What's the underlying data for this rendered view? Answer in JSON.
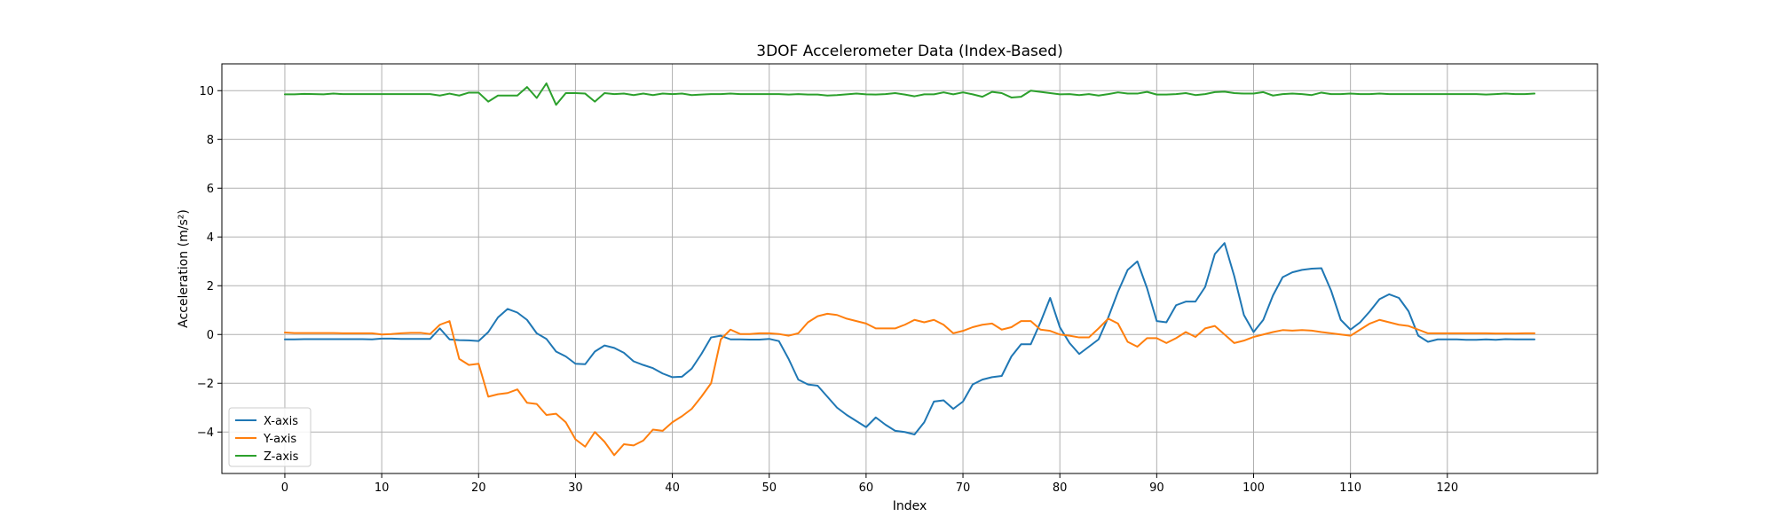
{
  "chart_data": {
    "type": "line",
    "title": "3DOF Accelerometer Data (Index-Based)",
    "xlabel": "Index",
    "ylabel": "Acceleration (m/s²)",
    "xlim": [
      -6.5,
      135.5
    ],
    "ylim": [
      -5.7,
      11.1
    ],
    "xticks": [
      0,
      10,
      20,
      30,
      40,
      50,
      60,
      70,
      80,
      90,
      100,
      110,
      120
    ],
    "yticks": [
      -4,
      -2,
      0,
      2,
      4,
      6,
      8,
      10
    ],
    "grid": true,
    "legend_position": "lower-left",
    "series": [
      {
        "name": "X-axis",
        "color": "#1f77b4",
        "values": [
          -0.2,
          -0.2,
          -0.19,
          -0.19,
          -0.19,
          -0.19,
          -0.19,
          -0.19,
          -0.19,
          -0.2,
          -0.17,
          -0.17,
          -0.18,
          -0.18,
          -0.18,
          -0.18,
          0.25,
          -0.2,
          -0.23,
          -0.24,
          -0.27,
          0.1,
          0.7,
          1.05,
          0.9,
          0.6,
          0.05,
          -0.18,
          -0.7,
          -0.9,
          -1.2,
          -1.22,
          -0.7,
          -0.45,
          -0.55,
          -0.75,
          -1.1,
          -1.25,
          -1.38,
          -1.6,
          -1.75,
          -1.73,
          -1.4,
          -0.8,
          -0.12,
          -0.05,
          -0.2,
          -0.2,
          -0.21,
          -0.21,
          -0.18,
          -0.27,
          -1.0,
          -1.85,
          -2.05,
          -2.1,
          -2.55,
          -3.0,
          -3.3,
          -3.55,
          -3.8,
          -3.4,
          -3.7,
          -3.95,
          -4.0,
          -4.1,
          -3.6,
          -2.75,
          -2.7,
          -3.05,
          -2.75,
          -2.05,
          -1.85,
          -1.75,
          -1.7,
          -0.9,
          -0.4,
          -0.4,
          0.5,
          1.5,
          0.3,
          -0.35,
          -0.8,
          -0.5,
          -0.2,
          0.7,
          1.75,
          2.65,
          3.0,
          1.9,
          0.55,
          0.5,
          1.2,
          1.35,
          1.35,
          1.95,
          3.3,
          3.75,
          2.4,
          0.8,
          0.1,
          0.6,
          1.6,
          2.35,
          2.55,
          2.65,
          2.7,
          2.72,
          1.8,
          0.6,
          0.2,
          0.5,
          0.95,
          1.45,
          1.65,
          1.5,
          0.95,
          -0.05,
          -0.3,
          -0.2,
          -0.2,
          -0.2,
          -0.22,
          -0.22,
          -0.2,
          -0.22,
          -0.19,
          -0.2,
          -0.2,
          -0.2
        ]
      },
      {
        "name": "Y-axis",
        "color": "#ff7f0e",
        "values": [
          0.08,
          0.06,
          0.06,
          0.06,
          0.06,
          0.06,
          0.05,
          0.05,
          0.05,
          0.05,
          0.0,
          0.02,
          0.05,
          0.07,
          0.07,
          0.02,
          0.4,
          0.55,
          -1.0,
          -1.25,
          -1.2,
          -2.55,
          -2.45,
          -2.4,
          -2.25,
          -2.8,
          -2.85,
          -3.3,
          -3.25,
          -3.6,
          -4.3,
          -4.6,
          -4.0,
          -4.4,
          -4.95,
          -4.5,
          -4.55,
          -4.35,
          -3.9,
          -3.95,
          -3.6,
          -3.35,
          -3.05,
          -2.55,
          -2.0,
          -0.2,
          0.2,
          0.02,
          0.02,
          0.05,
          0.05,
          0.02,
          -0.05,
          0.05,
          0.5,
          0.75,
          0.85,
          0.8,
          0.65,
          0.55,
          0.45,
          0.25,
          0.25,
          0.25,
          0.4,
          0.6,
          0.5,
          0.6,
          0.4,
          0.05,
          0.15,
          0.3,
          0.4,
          0.45,
          0.2,
          0.3,
          0.55,
          0.55,
          0.2,
          0.15,
          0.0,
          -0.05,
          -0.12,
          -0.12,
          0.25,
          0.65,
          0.45,
          -0.3,
          -0.5,
          -0.15,
          -0.15,
          -0.35,
          -0.15,
          0.1,
          -0.1,
          0.25,
          0.35,
          0.0,
          -0.35,
          -0.25,
          -0.1,
          0.0,
          0.1,
          0.18,
          0.16,
          0.18,
          0.16,
          0.1,
          0.05,
          0.0,
          -0.05,
          0.2,
          0.45,
          0.6,
          0.5,
          0.4,
          0.35,
          0.2,
          0.05,
          0.05,
          0.05,
          0.05,
          0.05,
          0.05,
          0.05,
          0.04,
          0.04,
          0.04,
          0.05,
          0.05
        ]
      },
      {
        "name": "Z-axis",
        "color": "#2ca02c",
        "values": [
          9.85,
          9.85,
          9.87,
          9.86,
          9.85,
          9.88,
          9.86,
          9.86,
          9.86,
          9.86,
          9.86,
          9.86,
          9.86,
          9.86,
          9.86,
          9.86,
          9.8,
          9.88,
          9.8,
          9.92,
          9.92,
          9.55,
          9.8,
          9.8,
          9.8,
          10.15,
          9.7,
          10.3,
          9.42,
          9.9,
          9.9,
          9.88,
          9.55,
          9.9,
          9.86,
          9.88,
          9.82,
          9.88,
          9.82,
          9.88,
          9.86,
          9.88,
          9.82,
          9.84,
          9.86,
          9.86,
          9.88,
          9.86,
          9.86,
          9.86,
          9.86,
          9.86,
          9.84,
          9.86,
          9.84,
          9.84,
          9.8,
          9.82,
          9.85,
          9.88,
          9.85,
          9.84,
          9.86,
          9.9,
          9.84,
          9.77,
          9.85,
          9.85,
          9.93,
          9.85,
          9.93,
          9.85,
          9.75,
          9.95,
          9.9,
          9.72,
          9.75,
          10.0,
          9.95,
          9.9,
          9.85,
          9.86,
          9.82,
          9.86,
          9.8,
          9.86,
          9.93,
          9.88,
          9.88,
          9.95,
          9.84,
          9.84,
          9.86,
          9.9,
          9.82,
          9.86,
          9.94,
          9.96,
          9.9,
          9.88,
          9.88,
          9.94,
          9.8,
          9.86,
          9.88,
          9.86,
          9.82,
          9.92,
          9.86,
          9.86,
          9.88,
          9.86,
          9.86,
          9.88,
          9.86,
          9.86,
          9.86,
          9.86,
          9.86,
          9.86,
          9.86,
          9.86,
          9.86,
          9.86,
          9.84,
          9.86,
          9.88,
          9.86,
          9.86,
          9.88
        ]
      }
    ]
  }
}
